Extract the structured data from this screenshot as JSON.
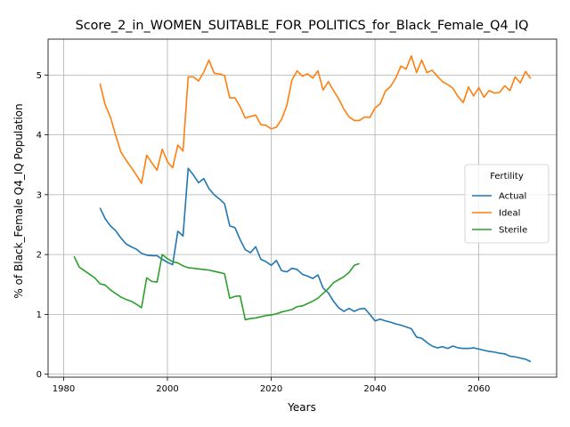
{
  "chart_data": {
    "type": "line",
    "title": "Score_2_in_WOMEN_SUITABLE_FOR_POLITICS_for_Black_Female_Q4_IQ",
    "xlabel": "Years",
    "ylabel": "% of Black_Female Q4_IQ Population",
    "xlim": [
      1977,
      2075
    ],
    "ylim": [
      -0.05,
      5.6
    ],
    "xticks": [
      1980,
      2000,
      2020,
      2040,
      2060
    ],
    "yticks": [
      0,
      1,
      2,
      3,
      4,
      5
    ],
    "grid": true,
    "legend": {
      "title": "Fertility",
      "placement": "center-right"
    },
    "series": [
      {
        "name": "Actual",
        "color": "#1f77b4",
        "x": [
          1987,
          1988,
          1989,
          1990,
          1991,
          1992,
          1993,
          1994,
          1995,
          1996,
          1997,
          1998,
          1999,
          2000,
          2001,
          2002,
          2003,
          2004,
          2005,
          2006,
          2007,
          2008,
          2009,
          2010,
          2011,
          2012,
          2013,
          2014,
          2015,
          2016,
          2017,
          2018,
          2019,
          2020,
          2021,
          2022,
          2023,
          2024,
          2025,
          2026,
          2027,
          2028,
          2029,
          2030,
          2031,
          2032,
          2033,
          2034,
          2035,
          2036,
          2037,
          2038,
          2039,
          2040,
          2041,
          2042,
          2043,
          2044,
          2045,
          2046,
          2047,
          2048,
          2049,
          2050,
          2051,
          2052,
          2053,
          2054,
          2055,
          2056,
          2057,
          2058,
          2059,
          2060,
          2061,
          2062,
          2063,
          2064,
          2065,
          2066,
          2067,
          2068,
          2069,
          2070
        ],
        "values": [
          2.78,
          2.6,
          2.48,
          2.4,
          2.28,
          2.18,
          2.13,
          2.09,
          2.02,
          1.99,
          1.98,
          1.98,
          1.92,
          1.87,
          1.83,
          2.39,
          2.31,
          3.44,
          3.33,
          3.2,
          3.27,
          3.1,
          3.0,
          2.93,
          2.85,
          2.48,
          2.45,
          2.25,
          2.08,
          2.03,
          2.13,
          1.92,
          1.88,
          1.82,
          1.9,
          1.73,
          1.71,
          1.77,
          1.75,
          1.67,
          1.64,
          1.6,
          1.66,
          1.44,
          1.36,
          1.22,
          1.11,
          1.05,
          1.1,
          1.05,
          1.09,
          1.1,
          1.0,
          0.89,
          0.92,
          0.89,
          0.87,
          0.84,
          0.82,
          0.79,
          0.76,
          0.62,
          0.6,
          0.53,
          0.47,
          0.44,
          0.46,
          0.43,
          0.47,
          0.44,
          0.43,
          0.43,
          0.44,
          0.42,
          0.4,
          0.38,
          0.37,
          0.35,
          0.34,
          0.3,
          0.29,
          0.27,
          0.25,
          0.21
        ]
      },
      {
        "name": "Ideal",
        "color": "#ff7f0e",
        "x": [
          1987,
          1988,
          1989,
          1990,
          1991,
          1992,
          1993,
          1994,
          1995,
          1996,
          1997,
          1998,
          1999,
          2000,
          2001,
          2002,
          2003,
          2004,
          2005,
          2006,
          2007,
          2008,
          2009,
          2010,
          2011,
          2012,
          2013,
          2014,
          2015,
          2016,
          2017,
          2018,
          2019,
          2020,
          2021,
          2022,
          2023,
          2024,
          2025,
          2026,
          2027,
          2028,
          2029,
          2030,
          2031,
          2032,
          2033,
          2034,
          2035,
          2036,
          2037,
          2038,
          2039,
          2040,
          2041,
          2042,
          2043,
          2044,
          2045,
          2046,
          2047,
          2048,
          2049,
          2050,
          2051,
          2052,
          2053,
          2054,
          2055,
          2056,
          2057,
          2058,
          2059,
          2060,
          2061,
          2062,
          2063,
          2064,
          2065,
          2066,
          2067,
          2068,
          2069,
          2070
        ],
        "values": [
          4.86,
          4.5,
          4.3,
          4.0,
          3.72,
          3.58,
          3.46,
          3.33,
          3.19,
          3.66,
          3.53,
          3.41,
          3.76,
          3.55,
          3.45,
          3.83,
          3.73,
          4.97,
          4.97,
          4.9,
          5.05,
          5.25,
          5.03,
          5.02,
          4.99,
          4.62,
          4.62,
          4.47,
          4.28,
          4.31,
          4.33,
          4.17,
          4.16,
          4.1,
          4.13,
          4.26,
          4.49,
          4.92,
          5.07,
          4.98,
          5.02,
          4.95,
          5.07,
          4.75,
          4.89,
          4.74,
          4.6,
          4.43,
          4.3,
          4.24,
          4.24,
          4.3,
          4.29,
          4.45,
          4.52,
          4.73,
          4.81,
          4.95,
          5.15,
          5.1,
          5.32,
          5.04,
          5.25,
          5.04,
          5.08,
          4.98,
          4.89,
          4.84,
          4.78,
          4.64,
          4.54,
          4.8,
          4.65,
          4.79,
          4.63,
          4.74,
          4.7,
          4.71,
          4.82,
          4.74,
          4.97,
          4.87,
          5.06,
          4.94
        ]
      },
      {
        "name": "Sterile",
        "color": "#2ca02c",
        "x": [
          1982,
          1983,
          1984,
          1985,
          1986,
          1987,
          1988,
          1989,
          1990,
          1991,
          1992,
          1993,
          1994,
          1995,
          1996,
          1997,
          1998,
          1999,
          2000,
          2001,
          2002,
          2003,
          2004,
          2005,
          2006,
          2007,
          2008,
          2009,
          2010,
          2011,
          2012,
          2013,
          2014,
          2015,
          2016,
          2017,
          2018,
          2019,
          2020,
          2021,
          2022,
          2023,
          2024,
          2025,
          2026,
          2027,
          2028,
          2029,
          2030,
          2031,
          2032,
          2033,
          2034,
          2035,
          2036,
          2037
        ],
        "values": [
          1.97,
          1.79,
          1.73,
          1.67,
          1.61,
          1.51,
          1.49,
          1.41,
          1.35,
          1.29,
          1.25,
          1.22,
          1.17,
          1.11,
          1.61,
          1.55,
          1.54,
          2.0,
          1.93,
          1.88,
          1.86,
          1.81,
          1.78,
          1.77,
          1.76,
          1.75,
          1.74,
          1.72,
          1.7,
          1.68,
          1.27,
          1.3,
          1.31,
          0.91,
          0.93,
          0.94,
          0.96,
          0.98,
          0.99,
          1.01,
          1.04,
          1.06,
          1.08,
          1.13,
          1.14,
          1.18,
          1.22,
          1.27,
          1.35,
          1.43,
          1.53,
          1.58,
          1.63,
          1.7,
          1.82,
          1.85
        ]
      }
    ]
  }
}
